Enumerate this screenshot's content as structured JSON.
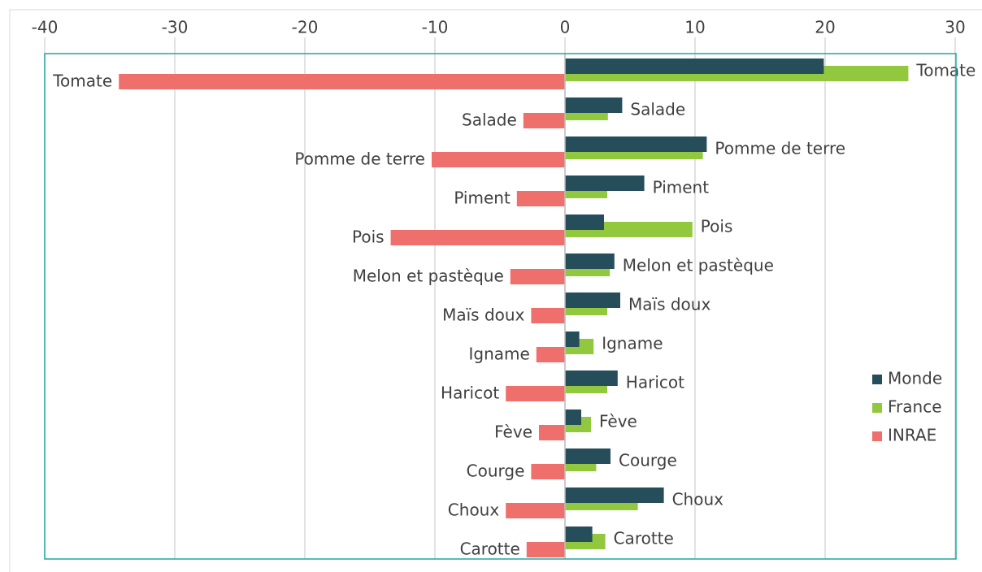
{
  "chart_data": {
    "type": "bar",
    "orientation": "horizontal",
    "categories": [
      "Tomate",
      "Salade",
      "Pomme de terre",
      "Piment",
      "Pois",
      "Melon et pastèque",
      "Maïs doux",
      "Igname",
      "Haricot",
      "Fève",
      "Courge",
      "Choux",
      "Carotte"
    ],
    "series": [
      {
        "name": "Monde",
        "color": "#264d5a",
        "values": [
          19.9,
          4.4,
          10.9,
          6.1,
          3.0,
          3.8,
          4.25,
          1.1,
          4.05,
          1.25,
          3.5,
          7.6,
          2.1
        ]
      },
      {
        "name": "France",
        "color": "#92c83e",
        "values": [
          26.4,
          3.3,
          10.6,
          3.25,
          9.8,
          3.45,
          3.25,
          2.2,
          3.25,
          2.0,
          2.4,
          5.6,
          3.1
        ]
      },
      {
        "name": "INRAE",
        "color": "#ef6f6c",
        "values": [
          -34.3,
          -3.2,
          -10.25,
          -3.7,
          -13.4,
          -4.2,
          -2.6,
          -2.2,
          -4.55,
          -2.0,
          -2.6,
          -4.55,
          -2.95
        ]
      }
    ],
    "xlim": [
      -40,
      30
    ],
    "xticks": [
      -40,
      -30,
      -20,
      -10,
      0,
      10,
      20,
      30
    ],
    "grid": true,
    "legend": "right"
  }
}
